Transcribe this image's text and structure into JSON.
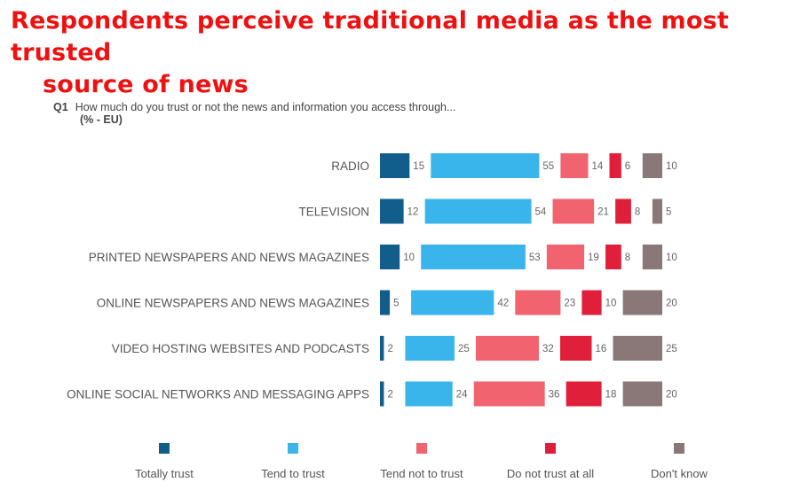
{
  "page": {
    "title_line1": "Respondents perceive traditional media as the most trusted",
    "title_line2": "source of news"
  },
  "question": {
    "number": "Q1",
    "text": "How much do you trust or not the news and information you access through...",
    "unit": "(% - EU)"
  },
  "chart_data": {
    "type": "bar",
    "orientation": "horizontal-segmented",
    "title": "How much do you trust or not the news and information you access through...",
    "xlabel": "",
    "ylabel": "",
    "categories": [
      "RADIO",
      "TELEVISION",
      "PRINTED NEWSPAPERS AND NEWS MAGAZINES",
      "ONLINE NEWSPAPERS AND NEWS MAGAZINES",
      "VIDEO HOSTING WEBSITES AND PODCASTS",
      "ONLINE SOCIAL NETWORKS AND MESSAGING APPS"
    ],
    "series": [
      {
        "name": "Totally trust",
        "color": "#115e8d",
        "values": [
          15,
          12,
          10,
          5,
          2,
          2
        ]
      },
      {
        "name": "Tend to trust",
        "color": "#3ab5ec",
        "values": [
          55,
          54,
          53,
          42,
          25,
          24
        ]
      },
      {
        "name": "Tend not to trust",
        "color": "#f0636f",
        "values": [
          14,
          21,
          19,
          23,
          32,
          36
        ]
      },
      {
        "name": "Do not trust at all",
        "color": "#e0203a",
        "values": [
          6,
          8,
          8,
          10,
          16,
          18
        ]
      },
      {
        "name": "Don't know",
        "color": "#8a7777",
        "values": [
          10,
          5,
          10,
          20,
          25,
          20
        ]
      }
    ],
    "legend_position": "bottom",
    "label_color": "#666666"
  }
}
